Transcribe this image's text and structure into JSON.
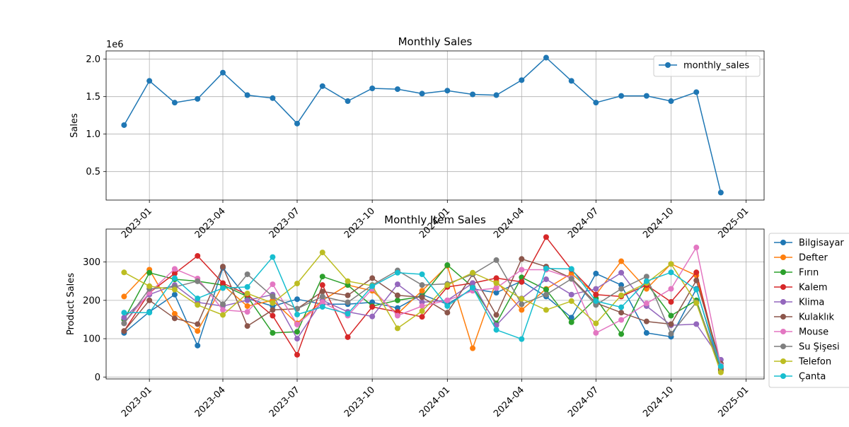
{
  "chart_data": [
    {
      "type": "line",
      "title": "Monthly Sales",
      "xlabel": "",
      "ylabel": "Sales",
      "y_offset_label": "1e6",
      "x": [
        "2022-12-01",
        "2023-01-01",
        "2023-02-01",
        "2023-03-01",
        "2023-04-01",
        "2023-05-01",
        "2023-06-01",
        "2023-07-01",
        "2023-08-01",
        "2023-09-01",
        "2023-10-01",
        "2023-11-01",
        "2023-12-01",
        "2024-01-01",
        "2024-02-01",
        "2024-03-01",
        "2024-04-01",
        "2024-05-01",
        "2024-06-01",
        "2024-07-01",
        "2024-08-01",
        "2024-09-01",
        "2024-10-01",
        "2024-11-01",
        "2024-12-01"
      ],
      "xlim": [
        "2022-11-09",
        "2025-01-23"
      ],
      "xticks": [
        {
          "date": "2023-01-01",
          "label": "2023-01"
        },
        {
          "date": "2023-04-01",
          "label": "2023-04"
        },
        {
          "date": "2023-07-01",
          "label": "2023-07"
        },
        {
          "date": "2023-10-01",
          "label": "2023-10"
        },
        {
          "date": "2024-01-01",
          "label": "2024-01"
        },
        {
          "date": "2024-04-01",
          "label": "2024-04"
        },
        {
          "date": "2024-07-01",
          "label": "2024-07"
        },
        {
          "date": "2024-10-01",
          "label": "2024-10"
        },
        {
          "date": "2025-01-01",
          "label": "2025-01"
        }
      ],
      "ylim": [
        120000,
        2110000
      ],
      "yticks": [
        {
          "value": 500000,
          "label": "0.5"
        },
        {
          "value": 1000000,
          "label": "1.0"
        },
        {
          "value": 1500000,
          "label": "1.5"
        },
        {
          "value": 2000000,
          "label": "2.0"
        }
      ],
      "grid": true,
      "legend_position": "top-right",
      "series": [
        {
          "name": "monthly_sales",
          "color": "#1f77b4",
          "values": [
            1120000,
            1710000,
            1420000,
            1470000,
            1820000,
            1520000,
            1480000,
            1140000,
            1640000,
            1440000,
            1610000,
            1600000,
            1540000,
            1580000,
            1530000,
            1520000,
            1720000,
            2020000,
            1710000,
            1420000,
            1510000,
            1510000,
            1440000,
            1560000,
            220000
          ]
        }
      ]
    },
    {
      "type": "line",
      "title": "Monthly Item Sales",
      "xlabel": "",
      "ylabel": "Product Sales",
      "x": [
        "2022-12-01",
        "2023-01-01",
        "2023-02-01",
        "2023-03-01",
        "2023-04-01",
        "2023-05-01",
        "2023-06-01",
        "2023-07-01",
        "2023-08-01",
        "2023-09-01",
        "2023-10-01",
        "2023-11-01",
        "2023-12-01",
        "2024-01-01",
        "2024-02-01",
        "2024-03-01",
        "2024-04-01",
        "2024-05-01",
        "2024-06-01",
        "2024-07-01",
        "2024-08-01",
        "2024-09-01",
        "2024-10-01",
        "2024-11-01",
        "2024-12-01"
      ],
      "xlim": [
        "2022-11-09",
        "2025-01-23"
      ],
      "xticks": [
        {
          "date": "2023-01-01",
          "label": "2023-01"
        },
        {
          "date": "2023-04-01",
          "label": "2023-04"
        },
        {
          "date": "2023-07-01",
          "label": "2023-07"
        },
        {
          "date": "2023-10-01",
          "label": "2023-10"
        },
        {
          "date": "2024-01-01",
          "label": "2024-01"
        },
        {
          "date": "2024-04-01",
          "label": "2024-04"
        },
        {
          "date": "2024-07-01",
          "label": "2024-07"
        },
        {
          "date": "2024-10-01",
          "label": "2024-10"
        },
        {
          "date": "2025-01-01",
          "label": "2025-01"
        }
      ],
      "ylim": [
        -5,
        386
      ],
      "yticks": [
        {
          "value": 0,
          "label": "0"
        },
        {
          "value": 100,
          "label": "100"
        },
        {
          "value": 200,
          "label": "200"
        },
        {
          "value": 300,
          "label": "300"
        }
      ],
      "grid": true,
      "legend_position": "outside right",
      "series": [
        {
          "name": "Bilgisayar",
          "color": "#1f77b4",
          "values": [
            115,
            170,
            215,
            82,
            285,
            205,
            185,
            203,
            190,
            190,
            195,
            180,
            215,
            190,
            230,
            220,
            250,
            210,
            155,
            270,
            240,
            115,
            105,
            230,
            20
          ]
        },
        {
          "name": "Defter",
          "color": "#ff7f0e",
          "values": [
            210,
            280,
            165,
            120,
            240,
            185,
            200,
            140,
            200,
            240,
            225,
            165,
            225,
            290,
            75,
            250,
            175,
            230,
            270,
            215,
            302,
            230,
            295,
            265,
            15
          ]
        },
        {
          "name": "Fırın",
          "color": "#2ca02c",
          "values": [
            150,
            272,
            255,
            250,
            240,
            210,
            115,
            118,
            262,
            240,
            185,
            200,
            210,
            292,
            235,
            140,
            260,
            228,
            143,
            205,
            112,
            245,
            160,
            200,
            18
          ]
        },
        {
          "name": "Kalem",
          "color": "#d62728",
          "values": [
            120,
            220,
            270,
            316,
            245,
            215,
            160,
            58,
            240,
            104,
            183,
            170,
            157,
            235,
            245,
            258,
            248,
            365,
            280,
            215,
            210,
            240,
            196,
            273,
            22
          ]
        },
        {
          "name": "Klima",
          "color": "#9467bd",
          "values": [
            155,
            215,
            240,
            195,
            185,
            200,
            215,
            100,
            200,
            170,
            158,
            242,
            195,
            200,
            245,
            135,
            205,
            255,
            215,
            230,
            272,
            185,
            135,
            138,
            45
          ]
        },
        {
          "name": "Kulaklık",
          "color": "#8c564b",
          "values": [
            120,
            200,
            153,
            138,
            288,
            133,
            175,
            178,
            223,
            213,
            258,
            213,
            208,
            168,
            268,
            162,
            308,
            288,
            258,
            193,
            168,
            145,
            138,
            252,
            35
          ]
        },
        {
          "name": "Mouse",
          "color": "#e377c2",
          "values": [
            140,
            220,
            282,
            257,
            175,
            170,
            242,
            137,
            195,
            160,
            230,
            160,
            185,
            200,
            225,
            232,
            280,
            280,
            258,
            115,
            149,
            192,
            230,
            338,
            30
          ]
        },
        {
          "name": "Su Şişesi",
          "color": "#7f7f7f",
          "values": [
            140,
            230,
            235,
            250,
            190,
            268,
            210,
            178,
            210,
            195,
            240,
            278,
            240,
            243,
            268,
            305,
            190,
            215,
            256,
            188,
            230,
            262,
            113,
            195,
            25
          ]
        },
        {
          "name": "Telefon",
          "color": "#bcbd22",
          "values": [
            273,
            237,
            228,
            188,
            162,
            218,
            193,
            244,
            325,
            250,
            238,
            127,
            172,
            240,
            272,
            245,
            204,
            175,
            198,
            140,
            213,
            245,
            295,
            193,
            12
          ]
        },
        {
          "name": "Çanta",
          "color": "#17becf",
          "values": [
            168,
            168,
            258,
            205,
            232,
            235,
            313,
            163,
            183,
            165,
            237,
            272,
            268,
            185,
            233,
            123,
            99,
            283,
            282,
            198,
            182,
            250,
            273,
            228,
            28
          ]
        }
      ]
    }
  ]
}
